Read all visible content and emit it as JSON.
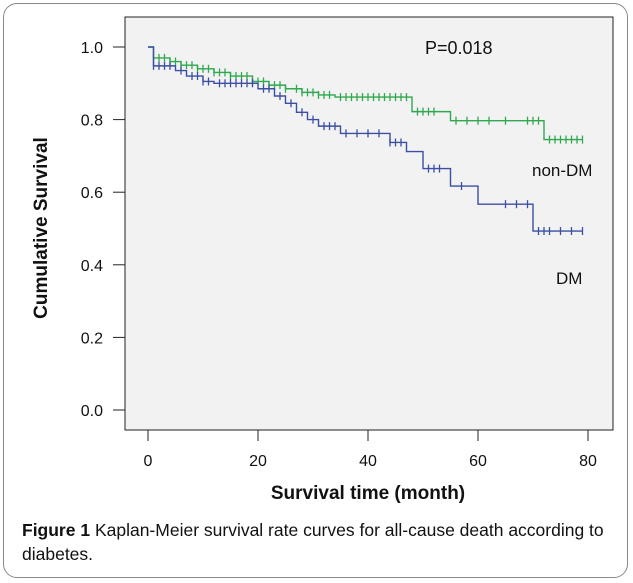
{
  "chart_data": {
    "type": "line",
    "title": "",
    "xlabel": "Survival time (month)",
    "ylabel": "Cumulative Survival",
    "xlim": [
      0,
      80
    ],
    "ylim": [
      0,
      1
    ],
    "xticks": [
      "0",
      "20",
      "40",
      "60",
      "80"
    ],
    "yticks": [
      "0.0",
      "0.2",
      "0.4",
      "0.6",
      "0.8",
      "1.0"
    ],
    "grid": false,
    "annotation": "P=0.018",
    "series": [
      {
        "name": "non-DM",
        "color": "#2fa84f",
        "steps": [
          [
            0,
            1.0
          ],
          [
            1,
            0.97
          ],
          [
            4,
            0.96
          ],
          [
            6,
            0.95
          ],
          [
            9,
            0.94
          ],
          [
            12,
            0.93
          ],
          [
            15,
            0.92
          ],
          [
            19,
            0.905
          ],
          [
            22,
            0.895
          ],
          [
            25,
            0.885
          ],
          [
            28,
            0.875
          ],
          [
            31,
            0.868
          ],
          [
            34,
            0.862
          ],
          [
            48,
            0.822
          ],
          [
            55,
            0.797
          ],
          [
            72,
            0.745
          ],
          [
            79,
            0.745
          ]
        ],
        "censored": [
          1,
          2,
          3,
          4,
          5,
          6,
          7,
          8,
          9,
          10,
          11,
          12,
          13,
          14,
          15,
          16,
          17,
          18,
          19,
          20,
          21,
          22,
          23,
          24,
          25,
          27,
          28,
          29,
          30,
          31,
          32,
          33,
          35,
          36,
          37,
          38,
          39,
          40,
          41,
          42,
          43,
          44,
          45,
          46,
          47,
          49,
          50,
          51,
          52,
          56,
          58,
          60,
          62,
          65,
          69,
          70,
          71,
          73,
          74,
          75,
          76,
          77,
          78,
          79
        ]
      },
      {
        "name": "DM",
        "color": "#3b4fa3",
        "steps": [
          [
            0,
            1.0
          ],
          [
            1,
            0.948
          ],
          [
            5,
            0.935
          ],
          [
            7,
            0.92
          ],
          [
            10,
            0.905
          ],
          [
            12,
            0.9
          ],
          [
            20,
            0.885
          ],
          [
            23,
            0.865
          ],
          [
            25,
            0.845
          ],
          [
            27,
            0.82
          ],
          [
            29,
            0.8
          ],
          [
            31,
            0.782
          ],
          [
            35,
            0.762
          ],
          [
            44,
            0.737
          ],
          [
            47,
            0.712
          ],
          [
            50,
            0.665
          ],
          [
            55,
            0.617
          ],
          [
            60,
            0.567
          ],
          [
            70,
            0.493
          ],
          [
            79,
            0.493
          ]
        ],
        "censored": [
          1,
          2,
          3,
          4,
          6,
          8,
          9,
          10,
          11,
          13,
          14,
          15,
          16,
          17,
          18,
          19,
          21,
          22,
          24,
          26,
          28,
          30,
          32,
          33,
          34,
          36,
          38,
          40,
          42,
          44,
          45,
          46,
          51,
          52,
          53,
          57,
          65,
          67,
          69,
          71,
          72,
          73,
          75,
          77,
          79
        ]
      }
    ]
  },
  "caption": {
    "label": "Figure 1",
    "text": " Kaplan-Meier survival rate curves for all-cause death according to diabetes."
  }
}
